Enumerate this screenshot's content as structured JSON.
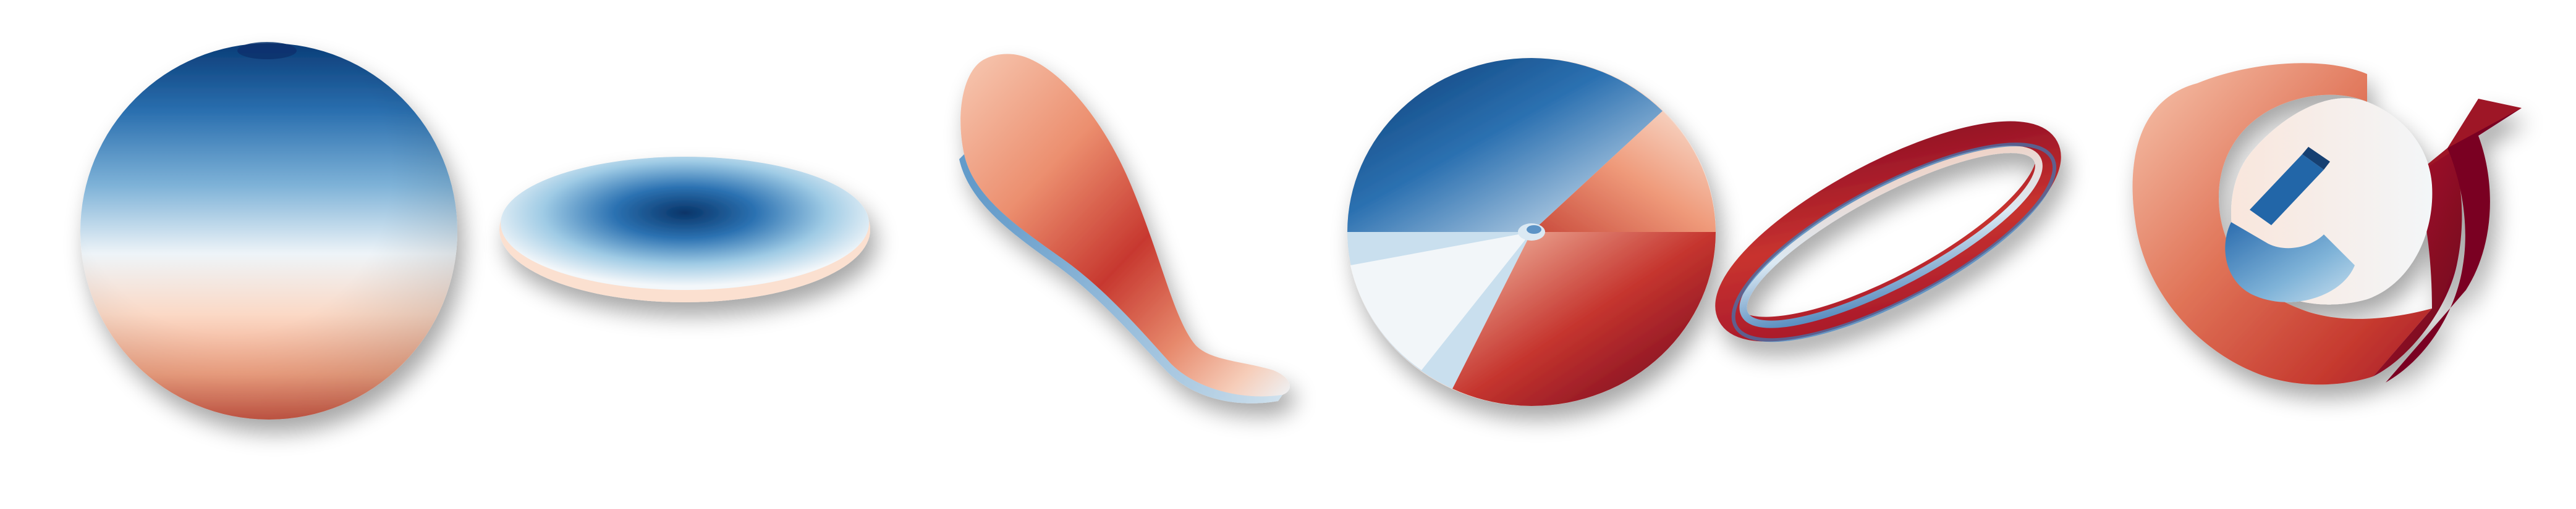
{
  "figure": {
    "colormap": {
      "name": "RdBu",
      "stops": [
        "#08306b",
        "#2166ac",
        "#4393c3",
        "#92c5de",
        "#f7fbff",
        "#fddbc7",
        "#f4a582",
        "#d6604d",
        "#b2182b",
        "#67001f"
      ]
    },
    "background": "#ffffff",
    "shapes": [
      {
        "id": "sphere",
        "kind": "sphere"
      },
      {
        "id": "flat-disk",
        "kind": "ellipsoid-disk"
      },
      {
        "id": "twisted-ribbon",
        "kind": "curved-ribbon"
      },
      {
        "id": "swirl-disk",
        "kind": "swirl-disk"
      },
      {
        "id": "torus-ring",
        "kind": "thin-torus"
      },
      {
        "id": "rolled-sheet",
        "kind": "scroll-surface"
      }
    ]
  }
}
